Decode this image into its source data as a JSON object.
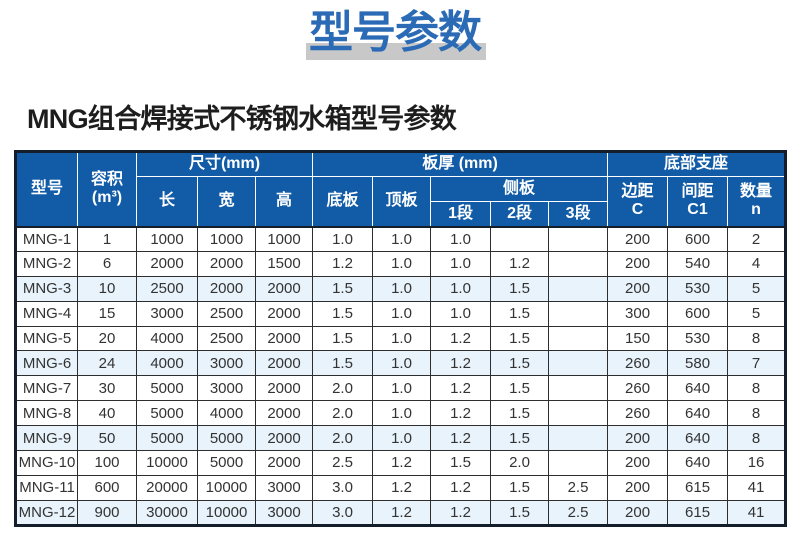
{
  "banner": {
    "title": "型号参数"
  },
  "heading": "MNG组合焊接式不锈钢水箱型号参数",
  "colors": {
    "accent_blue": "#2b6ab5",
    "header_bg": "#115ba7",
    "stripe": "#e8f3fb",
    "shadow_gray": "#c8c8c8"
  },
  "table": {
    "header": {
      "model": "型号",
      "volume_l1": "容积",
      "volume_l2": "(m³)",
      "size_group": "尺寸(mm)",
      "length": "长",
      "width": "宽",
      "height": "高",
      "thickness_group": "板厚 (mm)",
      "bottom_plate": "底板",
      "top_plate": "顶板",
      "side_plate": "侧板",
      "seg1": "1段",
      "seg2": "2段",
      "seg3": "3段",
      "support_group": "底部支座",
      "margin_l1": "边距",
      "margin_l2": "C",
      "spacing_l1": "间距",
      "spacing_l2": "C1",
      "qty_l1": "数量",
      "qty_l2": "n"
    },
    "rows": [
      {
        "model": "MNG-1",
        "values": [
          "1",
          "1000",
          "1000",
          "1000",
          "1.0",
          "1.0",
          "1.0",
          "",
          "",
          "200",
          "600",
          "2"
        ]
      },
      {
        "model": "MNG-2",
        "values": [
          "6",
          "2000",
          "2000",
          "1500",
          "1.2",
          "1.0",
          "1.0",
          "1.2",
          "",
          "200",
          "540",
          "4"
        ]
      },
      {
        "model": "MNG-3",
        "values": [
          "10",
          "2500",
          "2000",
          "2000",
          "1.5",
          "1.0",
          "1.0",
          "1.5",
          "",
          "200",
          "530",
          "5"
        ]
      },
      {
        "model": "MNG-4",
        "values": [
          "15",
          "3000",
          "2500",
          "2000",
          "1.5",
          "1.0",
          "1.0",
          "1.5",
          "",
          "300",
          "600",
          "5"
        ]
      },
      {
        "model": "MNG-5",
        "values": [
          "20",
          "4000",
          "2500",
          "2000",
          "1.5",
          "1.0",
          "1.2",
          "1.5",
          "",
          "150",
          "530",
          "8"
        ]
      },
      {
        "model": "MNG-6",
        "values": [
          "24",
          "4000",
          "3000",
          "2000",
          "1.5",
          "1.0",
          "1.2",
          "1.5",
          "",
          "260",
          "580",
          "7"
        ]
      },
      {
        "model": "MNG-7",
        "values": [
          "30",
          "5000",
          "3000",
          "2000",
          "2.0",
          "1.0",
          "1.2",
          "1.5",
          "",
          "260",
          "640",
          "8"
        ]
      },
      {
        "model": "MNG-8",
        "values": [
          "40",
          "5000",
          "4000",
          "2000",
          "2.0",
          "1.0",
          "1.2",
          "1.5",
          "",
          "260",
          "640",
          "8"
        ]
      },
      {
        "model": "MNG-9",
        "values": [
          "50",
          "5000",
          "5000",
          "2000",
          "2.0",
          "1.0",
          "1.2",
          "1.5",
          "",
          "200",
          "640",
          "8"
        ]
      },
      {
        "model": "MNG-10",
        "values": [
          "100",
          "10000",
          "5000",
          "2000",
          "2.5",
          "1.2",
          "1.5",
          "2.0",
          "",
          "200",
          "640",
          "16"
        ]
      },
      {
        "model": "MNG-11",
        "values": [
          "600",
          "20000",
          "10000",
          "3000",
          "3.0",
          "1.2",
          "1.2",
          "1.5",
          "2.5",
          "200",
          "615",
          "41"
        ]
      },
      {
        "model": "MNG-12",
        "values": [
          "900",
          "30000",
          "10000",
          "3000",
          "3.0",
          "1.2",
          "1.2",
          "1.5",
          "2.5",
          "200",
          "615",
          "41"
        ]
      }
    ]
  }
}
